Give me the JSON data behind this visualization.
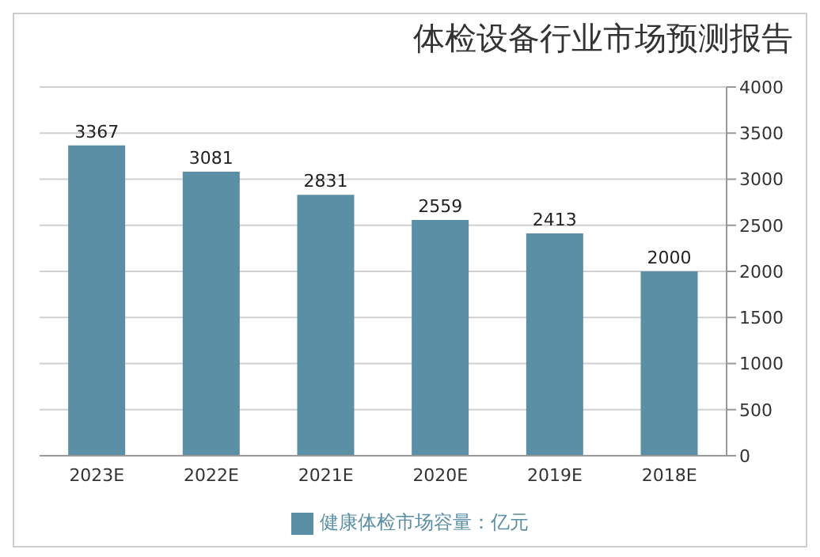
{
  "chart_data": {
    "type": "bar",
    "title": "体检设备行业市场预测报告",
    "categories": [
      "2023E",
      "2022E",
      "2021E",
      "2020E",
      "2019E",
      "2018E"
    ],
    "series": [
      {
        "name": "健康体检市场容量：亿元",
        "color": "#5b8fa6",
        "values": [
          3367,
          3081,
          2831,
          2559,
          2413,
          2000
        ]
      }
    ],
    "ylim": [
      0,
      4000
    ],
    "yticks": [
      0,
      500,
      1000,
      1500,
      2000,
      2500,
      3000,
      3500,
      4000
    ],
    "grid": "y",
    "data_labels": true,
    "legend": "bottom"
  }
}
